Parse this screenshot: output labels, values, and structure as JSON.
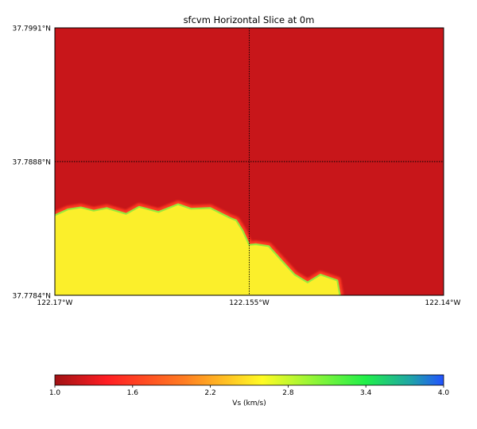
{
  "chart_data": {
    "type": "heatmap",
    "title": "sfcvm Horizontal Slice at 0m",
    "xlabel": "",
    "ylabel": "",
    "xlim": [
      -122.17,
      -122.14
    ],
    "ylim": [
      37.7784,
      37.7991
    ],
    "x_ticks": [
      {
        "value": -122.17,
        "label": "122.17°W"
      },
      {
        "value": -122.155,
        "label": "122.155°W"
      },
      {
        "value": -122.14,
        "label": "122.14°W"
      }
    ],
    "y_ticks": [
      {
        "value": 37.7991,
        "label": "37.7991°N"
      },
      {
        "value": 37.7888,
        "label": "37.7888°N"
      },
      {
        "value": 37.7784,
        "label": "37.7784°N"
      }
    ],
    "grid": true,
    "upper_region": {
      "vs": 1.0,
      "color": "#c8161a",
      "description": "Vs ≈ 1.0 km/s above boundary"
    },
    "lower_region": {
      "vs": 2.8,
      "color": "#fbef2b",
      "description": "Vs ≈ 2.8 km/s below boundary"
    },
    "boundary": {
      "x": [
        -122.17,
        -122.169,
        -122.168,
        -122.167,
        -122.166,
        -122.1645,
        -122.1635,
        -122.162,
        -122.1605,
        -122.1595,
        -122.158,
        -122.1565,
        -122.156,
        -122.1555,
        -122.155,
        -122.1545,
        -122.1535,
        -122.1525,
        -122.1515,
        -122.1505,
        -122.1495,
        -122.1482,
        -122.148
      ],
      "y": [
        37.7846,
        37.78505,
        37.7852,
        37.78495,
        37.78515,
        37.7847,
        37.78525,
        37.78485,
        37.78545,
        37.7851,
        37.78515,
        37.7844,
        37.7842,
        37.7834,
        37.7823,
        37.78235,
        37.7822,
        37.7811,
        37.78,
        37.7794,
        37.78,
        37.77955,
        37.7784
      ]
    },
    "colorbar": {
      "label": "Vs (km/s)",
      "min": 1.0,
      "max": 4.0,
      "ticks": [
        "1.0",
        "1.6",
        "2.2",
        "2.8",
        "3.4",
        "4.0"
      ],
      "stops": [
        {
          "value": 1.0,
          "color": "#a01214"
        },
        {
          "value": 1.4,
          "color": "#ff1d23"
        },
        {
          "value": 2.0,
          "color": "#ff7d22"
        },
        {
          "value": 2.6,
          "color": "#fffb24"
        },
        {
          "value": 3.4,
          "color": "#20ef4a"
        },
        {
          "value": 3.75,
          "color": "#1fa3a8"
        },
        {
          "value": 4.0,
          "color": "#2352ff"
        }
      ]
    }
  }
}
